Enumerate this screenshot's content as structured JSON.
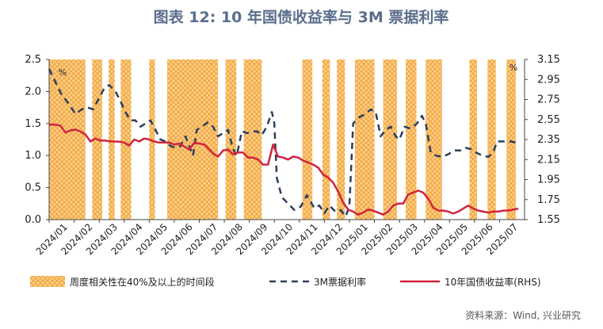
{
  "chart_data": {
    "type": "line",
    "title": "图表 12: 10 年国债收益率与 3M 票据利率",
    "source": "资料来源：Wind, 兴业研究",
    "left_unit": "%",
    "right_unit": "%",
    "ylim_left": [
      0,
      2.5
    ],
    "yticks_left": [
      "0.0",
      "0.5",
      "1.0",
      "1.5",
      "2.0",
      "2.5"
    ],
    "ylim_right": [
      1.55,
      3.15
    ],
    "yticks_right": [
      "1.55",
      "1.75",
      "1.95",
      "2.15",
      "2.35",
      "2.55",
      "2.75",
      "2.95",
      "3.15"
    ],
    "x_labels": [
      "2024/01",
      "2024/02",
      "2024/03",
      "2024/04",
      "2024/05",
      "2024/06",
      "2024/07",
      "2024/08",
      "2024/09",
      "2024/10",
      "2024/11",
      "2024/12",
      "2025/01",
      "2025/02",
      "2025/03",
      "2025/04",
      "2025/05",
      "2025/06",
      "2025/07"
    ],
    "grid": false,
    "legend_position": "bottom",
    "shaded_periods": [
      [
        0.0,
        1.45
      ],
      [
        1.72,
        2.12
      ],
      [
        2.38,
        2.62
      ],
      [
        2.86,
        3.28
      ],
      [
        4.0,
        4.23
      ],
      [
        4.72,
        6.75
      ],
      [
        7.05,
        7.48
      ],
      [
        7.78,
        8.5
      ],
      [
        10.12,
        10.52
      ],
      [
        10.92,
        11.22
      ],
      [
        11.5,
        11.82
      ],
      [
        12.22,
        13.0
      ],
      [
        13.35,
        13.9
      ],
      [
        14.25,
        14.68
      ],
      [
        15.05,
        15.7
      ],
      [
        16.8,
        17.1
      ],
      [
        17.52,
        17.85
      ],
      [
        18.28,
        18.65
      ]
    ],
    "series": [
      {
        "name": "周度相关性在40%及以上的时间段",
        "kind": "shaded",
        "color": "#f5a623"
      },
      {
        "name": "3M票据利率",
        "axis": "left",
        "color": "#2c3e5c",
        "dash": true,
        "points": [
          [
            0.0,
            2.35
          ],
          [
            0.25,
            2.15
          ],
          [
            0.5,
            1.95
          ],
          [
            0.8,
            1.8
          ],
          [
            1.05,
            1.65
          ],
          [
            1.3,
            1.72
          ],
          [
            1.55,
            1.75
          ],
          [
            1.75,
            1.72
          ],
          [
            2.0,
            1.9
          ],
          [
            2.2,
            2.05
          ],
          [
            2.4,
            2.1
          ],
          [
            2.65,
            2.0
          ],
          [
            2.85,
            1.85
          ],
          [
            3.05,
            1.68
          ],
          [
            3.25,
            1.55
          ],
          [
            3.45,
            1.55
          ],
          [
            3.65,
            1.45
          ],
          [
            3.85,
            1.5
          ],
          [
            4.05,
            1.55
          ],
          [
            4.25,
            1.4
          ],
          [
            4.45,
            1.25
          ],
          [
            4.65,
            1.22
          ],
          [
            4.85,
            1.15
          ],
          [
            5.05,
            1.12
          ],
          [
            5.25,
            1.15
          ],
          [
            5.45,
            1.3
          ],
          [
            5.6,
            1.15
          ],
          [
            5.75,
            1.0
          ],
          [
            5.9,
            1.4
          ],
          [
            6.1,
            1.45
          ],
          [
            6.35,
            1.52
          ],
          [
            6.55,
            1.45
          ],
          [
            6.75,
            1.3
          ],
          [
            6.95,
            1.35
          ],
          [
            7.15,
            1.4
          ],
          [
            7.35,
            1.1
          ],
          [
            7.5,
            1.0
          ],
          [
            7.7,
            1.38
          ],
          [
            7.9,
            1.35
          ],
          [
            8.1,
            1.37
          ],
          [
            8.3,
            1.38
          ],
          [
            8.5,
            1.32
          ],
          [
            8.7,
            1.45
          ],
          [
            8.9,
            1.68
          ],
          [
            9.0,
            1.5
          ],
          [
            9.1,
            0.65
          ],
          [
            9.3,
            0.35
          ],
          [
            9.55,
            0.25
          ],
          [
            9.8,
            0.15
          ],
          [
            10.05,
            0.2
          ],
          [
            10.3,
            0.38
          ],
          [
            10.45,
            0.28
          ],
          [
            10.6,
            0.18
          ],
          [
            10.8,
            0.22
          ],
          [
            11.0,
            0.1
          ],
          [
            11.2,
            0.22
          ],
          [
            11.45,
            0.12
          ],
          [
            11.65,
            0.15
          ],
          [
            11.85,
            0.05
          ],
          [
            12.0,
            0.2
          ],
          [
            12.15,
            1.5
          ],
          [
            12.4,
            1.6
          ],
          [
            12.65,
            1.65
          ],
          [
            12.85,
            1.72
          ],
          [
            13.05,
            1.68
          ],
          [
            13.25,
            1.3
          ],
          [
            13.45,
            1.4
          ],
          [
            13.65,
            1.45
          ],
          [
            13.85,
            1.3
          ],
          [
            14.0,
            1.25
          ],
          [
            14.2,
            1.45
          ],
          [
            14.45,
            1.42
          ],
          [
            14.7,
            1.5
          ],
          [
            14.9,
            1.62
          ],
          [
            15.05,
            1.5
          ],
          [
            15.25,
            1.05
          ],
          [
            15.45,
            1.0
          ],
          [
            15.7,
            0.98
          ],
          [
            15.95,
            1.02
          ],
          [
            16.2,
            1.08
          ],
          [
            16.45,
            1.08
          ],
          [
            16.65,
            1.12
          ],
          [
            16.85,
            1.1
          ],
          [
            17.05,
            1.05
          ],
          [
            17.3,
            1.0
          ],
          [
            17.55,
            0.98
          ],
          [
            17.75,
            1.05
          ],
          [
            17.9,
            1.22
          ],
          [
            18.15,
            1.22
          ],
          [
            18.45,
            1.22
          ],
          [
            18.7,
            1.2
          ]
        ]
      },
      {
        "name": "10年国债收益率(RHS)",
        "axis": "right",
        "color": "#d0243c",
        "dash": false,
        "points": [
          [
            0.0,
            2.5
          ],
          [
            0.2,
            2.5
          ],
          [
            0.45,
            2.49
          ],
          [
            0.65,
            2.42
          ],
          [
            0.85,
            2.44
          ],
          [
            1.05,
            2.45
          ],
          [
            1.25,
            2.43
          ],
          [
            1.45,
            2.4
          ],
          [
            1.65,
            2.33
          ],
          [
            1.85,
            2.36
          ],
          [
            2.05,
            2.34
          ],
          [
            2.25,
            2.34
          ],
          [
            2.5,
            2.33
          ],
          [
            2.75,
            2.33
          ],
          [
            3.0,
            2.32
          ],
          [
            3.2,
            2.29
          ],
          [
            3.4,
            2.35
          ],
          [
            3.6,
            2.33
          ],
          [
            3.8,
            2.36
          ],
          [
            4.0,
            2.35
          ],
          [
            4.2,
            2.33
          ],
          [
            4.4,
            2.32
          ],
          [
            4.6,
            2.32
          ],
          [
            4.8,
            2.32
          ],
          [
            5.0,
            2.3
          ],
          [
            5.2,
            2.31
          ],
          [
            5.4,
            2.28
          ],
          [
            5.6,
            2.25
          ],
          [
            5.8,
            2.32
          ],
          [
            6.0,
            2.31
          ],
          [
            6.2,
            2.3
          ],
          [
            6.4,
            2.25
          ],
          [
            6.6,
            2.2
          ],
          [
            6.75,
            2.18
          ],
          [
            6.95,
            2.24
          ],
          [
            7.15,
            2.25
          ],
          [
            7.35,
            2.2
          ],
          [
            7.55,
            2.22
          ],
          [
            7.75,
            2.22
          ],
          [
            7.95,
            2.17
          ],
          [
            8.15,
            2.17
          ],
          [
            8.35,
            2.15
          ],
          [
            8.55,
            2.1
          ],
          [
            8.75,
            2.1
          ],
          [
            8.95,
            2.3
          ],
          [
            9.15,
            2.18
          ],
          [
            9.35,
            2.17
          ],
          [
            9.55,
            2.15
          ],
          [
            9.75,
            2.18
          ],
          [
            9.95,
            2.17
          ],
          [
            10.15,
            2.14
          ],
          [
            10.35,
            2.12
          ],
          [
            10.55,
            2.1
          ],
          [
            10.75,
            2.07
          ],
          [
            10.95,
            2.0
          ],
          [
            11.15,
            1.97
          ],
          [
            11.35,
            1.92
          ],
          [
            11.55,
            1.83
          ],
          [
            11.75,
            1.72
          ],
          [
            11.95,
            1.65
          ],
          [
            12.15,
            1.63
          ],
          [
            12.35,
            1.6
          ],
          [
            12.55,
            1.62
          ],
          [
            12.75,
            1.65
          ],
          [
            12.95,
            1.64
          ],
          [
            13.15,
            1.62
          ],
          [
            13.35,
            1.6
          ],
          [
            13.55,
            1.63
          ],
          [
            13.75,
            1.69
          ],
          [
            13.95,
            1.71
          ],
          [
            14.15,
            1.71
          ],
          [
            14.35,
            1.8
          ],
          [
            14.55,
            1.82
          ],
          [
            14.75,
            1.84
          ],
          [
            14.95,
            1.82
          ],
          [
            15.15,
            1.76
          ],
          [
            15.35,
            1.67
          ],
          [
            15.55,
            1.64
          ],
          [
            15.75,
            1.64
          ],
          [
            15.95,
            1.63
          ],
          [
            16.15,
            1.61
          ],
          [
            16.35,
            1.63
          ],
          [
            16.55,
            1.66
          ],
          [
            16.75,
            1.69
          ],
          [
            16.95,
            1.66
          ],
          [
            17.15,
            1.64
          ],
          [
            17.35,
            1.63
          ],
          [
            17.55,
            1.62
          ],
          [
            17.75,
            1.63
          ],
          [
            17.95,
            1.63
          ],
          [
            18.15,
            1.64
          ],
          [
            18.35,
            1.64
          ],
          [
            18.55,
            1.65
          ],
          [
            18.75,
            1.66
          ]
        ]
      }
    ]
  }
}
